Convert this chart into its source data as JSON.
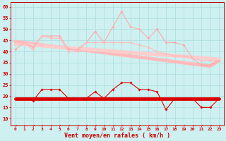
{
  "x": [
    0,
    1,
    2,
    3,
    4,
    5,
    6,
    7,
    8,
    9,
    10,
    11,
    12,
    13,
    14,
    15,
    16,
    17,
    18,
    19,
    20,
    21,
    22,
    23
  ],
  "rafales": [
    41,
    44,
    42,
    47,
    47,
    47,
    41,
    41,
    44,
    49,
    44,
    51,
    58,
    51,
    50,
    46,
    50,
    44,
    44,
    43,
    37,
    34,
    34,
    36
  ],
  "vent_moyen": [
    44,
    44,
    41,
    47,
    46,
    46,
    40,
    40,
    44,
    44,
    44,
    44,
    44,
    44,
    43,
    42,
    40,
    39,
    38,
    38,
    37,
    36,
    36,
    36
  ],
  "vent_min": [
    19,
    19,
    18,
    23,
    23,
    23,
    19,
    19,
    19,
    22,
    19,
    23,
    26,
    26,
    23,
    23,
    22,
    14,
    19,
    19,
    19,
    15,
    15,
    19
  ],
  "trend_rafales": [
    44.5,
    44.0,
    43.5,
    43.0,
    42.5,
    42.0,
    41.5,
    41.0,
    40.5,
    40.0,
    39.5,
    39.0,
    38.5,
    38.0,
    37.5,
    37.0,
    36.5,
    36.0,
    35.5,
    35.0,
    34.5,
    34.0,
    33.5,
    36.0
  ],
  "trend_moyen": [
    43.5,
    43.2,
    42.9,
    42.6,
    42.3,
    42.0,
    41.7,
    41.4,
    41.1,
    40.8,
    40.5,
    40.2,
    39.9,
    39.6,
    39.3,
    39.0,
    38.7,
    38.4,
    38.1,
    37.8,
    37.5,
    37.2,
    36.9,
    36.6
  ],
  "trend_min": [
    19.0,
    19.0,
    19.0,
    19.0,
    19.0,
    19.0,
    19.0,
    19.0,
    19.0,
    19.0,
    19.0,
    19.0,
    19.0,
    19.0,
    19.0,
    19.0,
    19.0,
    19.0,
    19.0,
    19.0,
    19.0,
    19.0,
    19.0,
    19.0
  ],
  "dotted_bottom": [
    7,
    7,
    7,
    7,
    7,
    7,
    7,
    7,
    7,
    7,
    7,
    7,
    7,
    7,
    7,
    7,
    7,
    7,
    7,
    7,
    7,
    7,
    7,
    7
  ],
  "bg_color": "#cef0f0",
  "grid_color": "#aadddd",
  "color_rafales": "#ffaaaa",
  "color_moyen": "#ffbbbb",
  "color_min": "#dd0000",
  "color_trend_rafales": "#ffbbbb",
  "color_trend_moyen": "#ffcccc",
  "color_trend_min": "#dd0000",
  "color_dotted": "#dd0000",
  "xlabel": "Vent moyen/en rafales ( km/h )",
  "ylim": [
    7,
    62
  ],
  "yticks": [
    10,
    15,
    20,
    25,
    30,
    35,
    40,
    45,
    50,
    55,
    60
  ]
}
